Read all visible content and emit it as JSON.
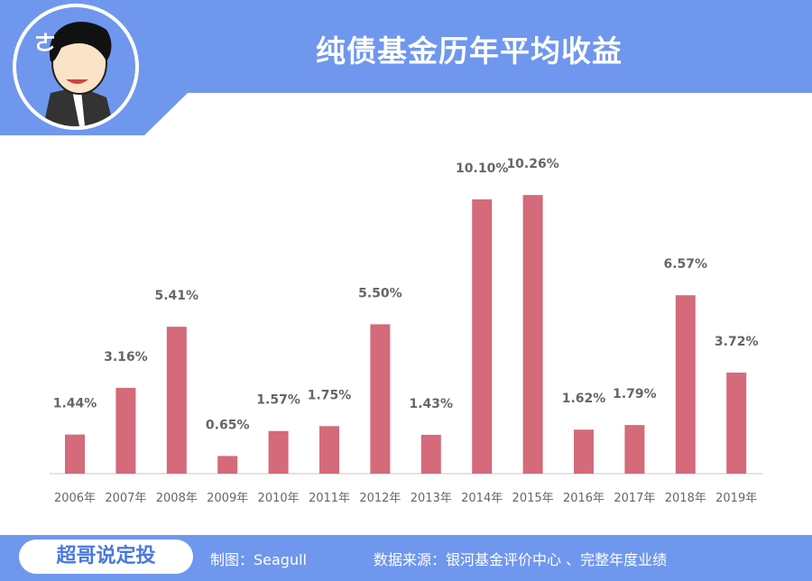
{
  "header": {
    "title": "纯债基金历年平均收益"
  },
  "footer": {
    "logo": "超哥说定投",
    "author": "制图：Seagull",
    "source": "数据来源：银河基金评价中心 、完整年度业绩"
  },
  "colors": {
    "header": "#6f97ee",
    "bar": "#d46a7a"
  },
  "chart_data": {
    "type": "bar",
    "title": "纯债基金历年平均收益",
    "categories": [
      "2006年",
      "2007年",
      "2008年",
      "2009年",
      "2010年",
      "2011年",
      "2012年",
      "2013年",
      "2014年",
      "2015年",
      "2016年",
      "2017年",
      "2018年",
      "2019年"
    ],
    "values": [
      1.44,
      3.16,
      5.41,
      0.65,
      1.57,
      1.75,
      5.5,
      1.43,
      10.1,
      10.26,
      1.62,
      1.79,
      6.57,
      3.72
    ],
    "data_labels": [
      "1.44%",
      "3.16%",
      "5.41%",
      "0.65%",
      "1.57%",
      "1.75%",
      "5.50%",
      "1.43%",
      "10.10%",
      "10.26%",
      "1.62%",
      "1.79%",
      "6.57%",
      "3.72%"
    ],
    "unit": "%",
    "ylim": [
      0,
      10.5
    ],
    "grid": false,
    "legend": "none"
  }
}
